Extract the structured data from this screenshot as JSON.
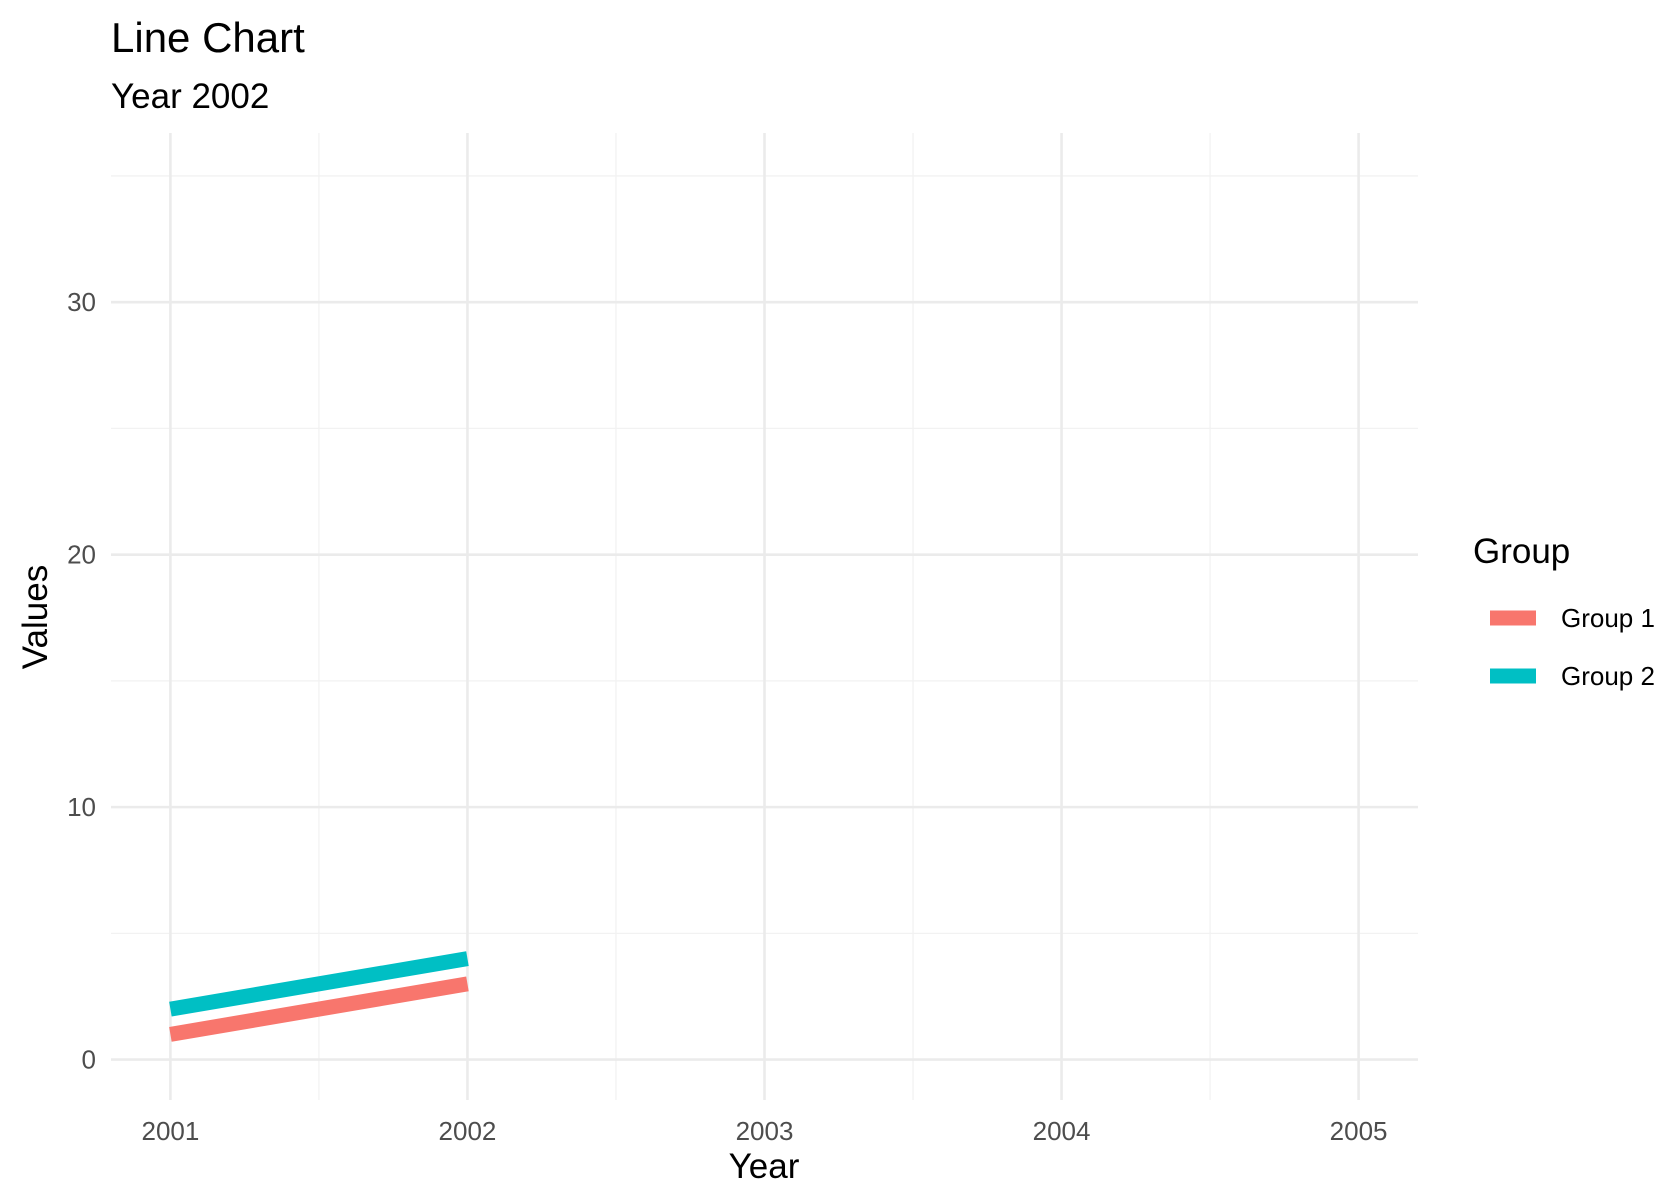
{
  "chart_data": {
    "type": "line",
    "title": "Line Chart",
    "subtitle": "Year 2002",
    "xlabel": "Year",
    "ylabel": "Values",
    "x": [
      2001,
      2002
    ],
    "xlim": [
      2000.8,
      2005.2
    ],
    "ylim": [
      -1.6,
      36.7
    ],
    "xticks": [
      2001,
      2002,
      2003,
      2004,
      2005
    ],
    "xtick_labels": [
      "2001",
      "2002",
      "2003",
      "2004",
      "2005"
    ],
    "yticks": [
      0,
      10,
      20,
      30
    ],
    "ytick_labels": [
      "0",
      "10",
      "20",
      "30"
    ],
    "grid": true,
    "legend": {
      "title": "Group",
      "placement": "right"
    },
    "series": [
      {
        "name": "Group 1",
        "color": "#F8766D",
        "values": [
          1,
          3
        ]
      },
      {
        "name": "Group 2",
        "color": "#00BFC4",
        "values": [
          2,
          4
        ]
      }
    ]
  }
}
